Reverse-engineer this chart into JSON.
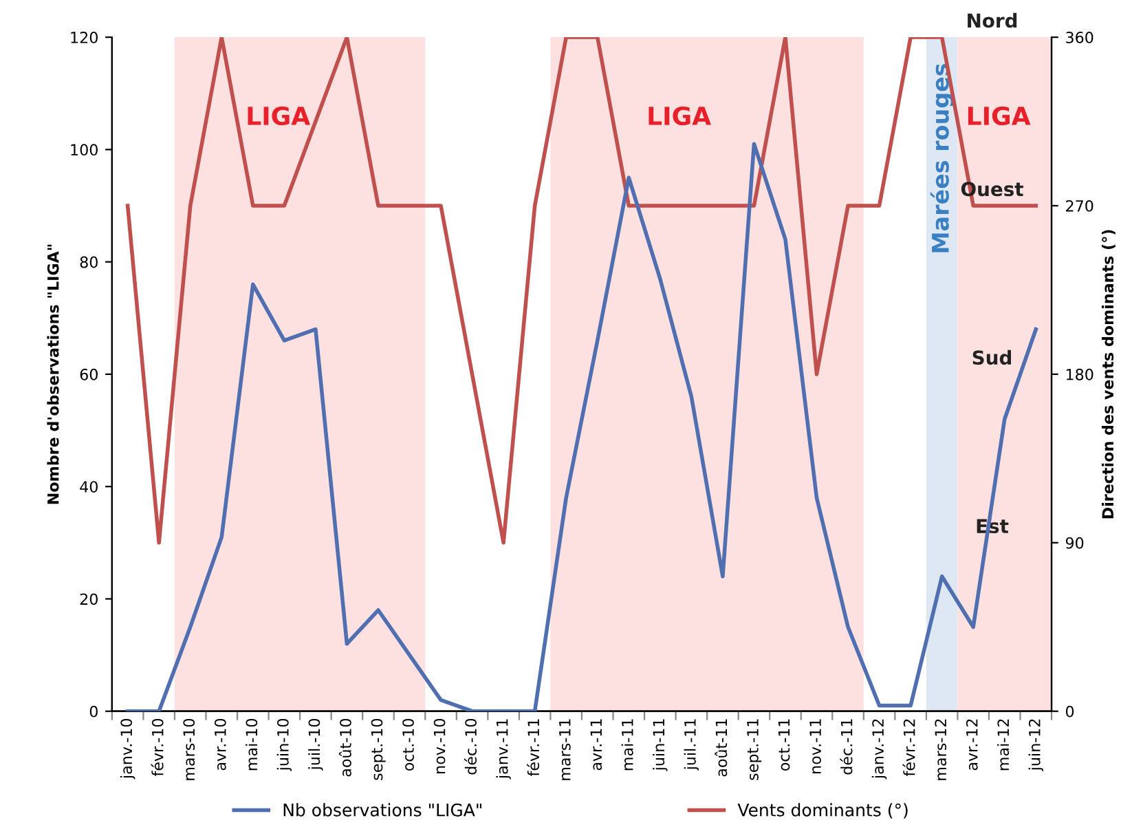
{
  "chart_data": {
    "type": "line",
    "categories": [
      "janv.-10",
      "févr.-10",
      "mars-10",
      "avr.-10",
      "mai-10",
      "juin-10",
      "juil.-10",
      "août-10",
      "sept.-10",
      "oct.-10",
      "nov.-10",
      "déc.-10",
      "janv.-11",
      "févr.-11",
      "mars-11",
      "avr.-11",
      "mai-11",
      "juin-11",
      "juil.-11",
      "août-11",
      "sept.-11",
      "oct.-11",
      "nov.-11",
      "déc.-11",
      "janv.-12",
      "févr.-12",
      "mars-12",
      "avr.-12",
      "mai-12",
      "juin-12"
    ],
    "series": [
      {
        "name": "Nb observations \"LIGA\"",
        "color": "#4f6fb0",
        "values": [
          0,
          0,
          15,
          31,
          76,
          66,
          68,
          12,
          18,
          10,
          2,
          0,
          0,
          0,
          38,
          66,
          95,
          77,
          56,
          24,
          101,
          84,
          38,
          15,
          1,
          1,
          24,
          15,
          52,
          68
        ]
      },
      {
        "name": "Vents dominants (°)",
        "color": "#c0504d",
        "axis": "y2",
        "values": [
          270,
          90,
          270,
          360,
          270,
          270,
          315,
          360,
          270,
          270,
          270,
          180,
          90,
          270,
          360,
          360,
          270,
          270,
          270,
          270,
          270,
          360,
          180,
          270,
          270,
          360,
          360,
          270,
          270,
          270
        ]
      }
    ],
    "ylabel": "Nombre d'observations \"LIGA\"",
    "y2label": "Direction des vents dominants (°)",
    "ylim": [
      0,
      120
    ],
    "yticks": [
      0,
      20,
      40,
      60,
      80,
      100,
      120
    ],
    "y2lim": [
      0,
      360
    ],
    "y2ticks": [
      0,
      90,
      180,
      270,
      360
    ],
    "bands": [
      {
        "axis": "x",
        "from": "mars-10",
        "to": "oct.-10",
        "label": "LIGA",
        "color": "#fde0e0"
      },
      {
        "axis": "x",
        "from": "mars-11",
        "to": "déc.-11",
        "label": "LIGA",
        "color": "#fde0e0"
      },
      {
        "axis": "x",
        "from": "mars-12",
        "to": "mars-12",
        "label": "Marées rouges",
        "color": "#dde8f3"
      },
      {
        "axis": "x",
        "from": "avr.-12",
        "to": "juin-12",
        "label": "LIGA",
        "color": "#fde0e0"
      }
    ],
    "annotations": [
      "Nord",
      "Ouest",
      "Sud",
      "Est"
    ],
    "legend": "bottom",
    "grid": false,
    "marker": "none",
    "line_style": "solid"
  }
}
